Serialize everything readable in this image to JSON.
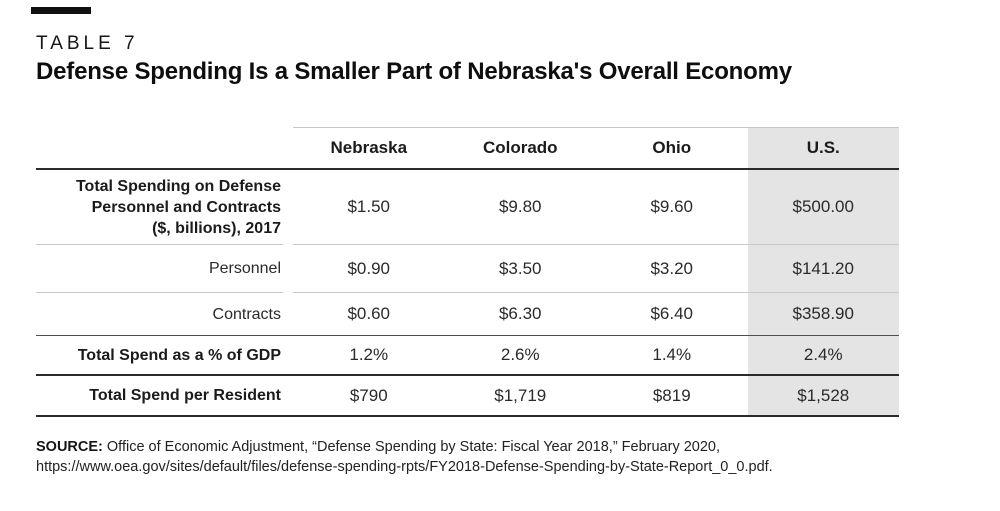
{
  "table_label": "TABLE 7",
  "title": "Defense Spending Is a Smaller Part of Nebraska's Overall Economy",
  "table": {
    "columns": [
      "Nebraska",
      "Colorado",
      "Ohio",
      "U.S."
    ],
    "highlight_column": "U.S.",
    "rows": [
      {
        "label": "Total Spending on Defense\nPersonnel and Contracts\n($, billions), 2017",
        "values": [
          "$1.50",
          "$9.80",
          "$9.60",
          "$500.00"
        ]
      },
      {
        "label": "Personnel",
        "values": [
          "$0.90",
          "$3.50",
          "$3.20",
          "$141.20"
        ]
      },
      {
        "label": "Contracts",
        "values": [
          "$0.60",
          "$6.30",
          "$6.40",
          "$358.90"
        ]
      },
      {
        "label": "Total Spend as a % of GDP",
        "values": [
          "1.2%",
          "2.6%",
          "1.4%",
          "2.4%"
        ]
      },
      {
        "label": "Total Spend per Resident",
        "values": [
          "$790",
          "$1,719",
          "$819",
          "$1,528"
        ]
      }
    ]
  },
  "source": {
    "label": "SOURCE:",
    "text": " Office of Economic Adjustment, “Defense Spending by State: Fiscal Year 2018,” February 2020, https://www.oea.gov/sites/default/files/defense-spending-rpts/FY2018-Defense-Spending-by-State-Report_0_0.pdf."
  },
  "colors": {
    "highlight_bg": "#e4e4e4",
    "rule_dark": "#2b2b2b",
    "rule_light": "#c8c8c8",
    "accent_bar": "#111111"
  }
}
